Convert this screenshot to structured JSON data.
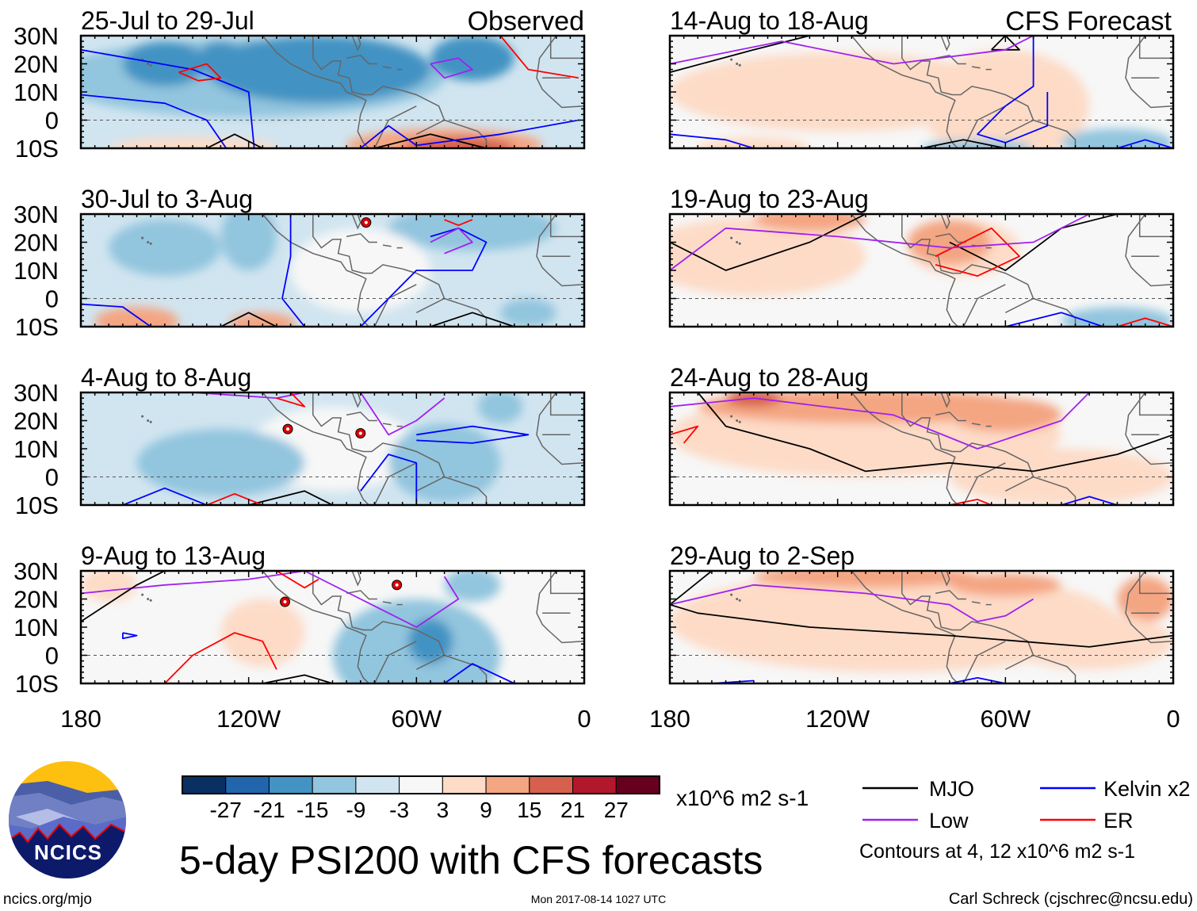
{
  "figure": {
    "title": "5-day PSI200 with CFS forecasts",
    "footer_left": "ncics.org/mjo",
    "footer_center": "Mon 2017-08-14 1027 UTC",
    "footer_right": "Carl Schreck (cjschrec@ncsu.edu)",
    "logo_text": "NCICS"
  },
  "columns": {
    "left_label": "Observed",
    "right_label": "CFS Forecast"
  },
  "panels": [
    {
      "title": "25-Jul to 29-Jul",
      "type": "observed"
    },
    {
      "title": "30-Jul to 3-Aug",
      "type": "observed"
    },
    {
      "title": "4-Aug to 8-Aug",
      "type": "observed"
    },
    {
      "title": "9-Aug to 13-Aug",
      "type": "observed"
    },
    {
      "title": "14-Aug to 18-Aug",
      "type": "forecast"
    },
    {
      "title": "19-Aug to 23-Aug",
      "type": "forecast"
    },
    {
      "title": "24-Aug to 28-Aug",
      "type": "forecast"
    },
    {
      "title": "29-Aug to 2-Sep",
      "type": "forecast"
    }
  ],
  "axes": {
    "lat_labels": [
      "30N",
      "20N",
      "10N",
      "0",
      "10S"
    ],
    "lon_labels": [
      "180",
      "120W",
      "60W",
      "0"
    ]
  },
  "colorbar": {
    "colors": [
      "#0a2f63",
      "#2166ac",
      "#4393c3",
      "#92c5de",
      "#d1e5f0",
      "#f7f7f7",
      "#fddbc7",
      "#f4a582",
      "#d6604d",
      "#b2182b",
      "#67001f"
    ],
    "labels": [
      "-27",
      "-21",
      "-15",
      "-9",
      "-3",
      "3",
      "9",
      "15",
      "21",
      "27"
    ],
    "units": "x10^6 m2 s-1"
  },
  "legend": {
    "items": [
      {
        "label": "MJO",
        "color": "#000000"
      },
      {
        "label": "Kelvin x2",
        "color": "#0000ff"
      },
      {
        "label": "Low",
        "color": "#a020f0"
      },
      {
        "label": "ER",
        "color": "#ff0000"
      }
    ],
    "note": "Contours at 4, 12 x10^6 m2 s-1"
  }
}
